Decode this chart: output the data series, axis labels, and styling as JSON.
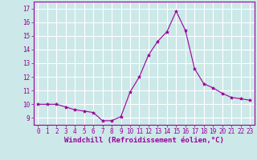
{
  "x": [
    0,
    1,
    2,
    3,
    4,
    5,
    6,
    7,
    8,
    9,
    10,
    11,
    12,
    13,
    14,
    15,
    16,
    17,
    18,
    19,
    20,
    21,
    22,
    23
  ],
  "y": [
    10.0,
    10.0,
    10.0,
    9.8,
    9.6,
    9.5,
    9.4,
    8.8,
    8.8,
    9.1,
    10.9,
    12.0,
    13.6,
    14.6,
    15.3,
    16.8,
    15.4,
    12.6,
    11.5,
    11.2,
    10.8,
    10.5,
    10.4,
    10.3
  ],
  "line_color": "#990099",
  "marker": "*",
  "marker_size": 3,
  "background_color": "#cce8e8",
  "grid_color": "#ffffff",
  "xlabel": "Windchill (Refroidissement éolien,°C)",
  "xlabel_color": "#990099",
  "tick_color": "#990099",
  "label_color": "#990099",
  "ylim": [
    8.5,
    17.5
  ],
  "xlim": [
    -0.5,
    23.5
  ],
  "yticks": [
    9,
    10,
    11,
    12,
    13,
    14,
    15,
    16,
    17
  ],
  "xticks": [
    0,
    1,
    2,
    3,
    4,
    5,
    6,
    7,
    8,
    9,
    10,
    11,
    12,
    13,
    14,
    15,
    16,
    17,
    18,
    19,
    20,
    21,
    22,
    23
  ],
  "tick_fontsize": 5.5,
  "xlabel_fontsize": 6.5
}
